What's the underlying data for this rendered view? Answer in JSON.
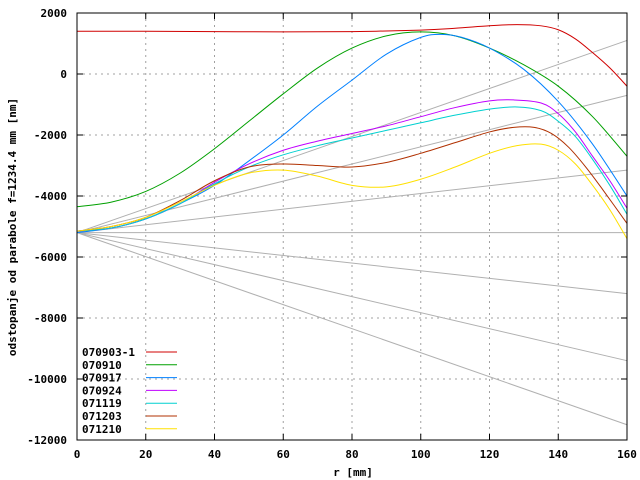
{
  "chart_data": {
    "type": "line",
    "xlabel": "r [mm]",
    "ylabel": "odstopanje od parabole f=1234.4 mm [nm]",
    "xlim": [
      0,
      160
    ],
    "ylim": [
      -12000,
      2000
    ],
    "x_ticks": [
      "0",
      "20",
      "40",
      "60",
      "80",
      "100",
      "120",
      "140",
      "160"
    ],
    "y_ticks": [
      "2000",
      "0",
      "-2000",
      "-4000",
      "-6000",
      "-8000",
      "-10000",
      "-12000"
    ],
    "grid": true,
    "legend_position": "bottom-left",
    "series": [
      {
        "name": "070903-1",
        "color": "#d00000",
        "x": [
          0,
          20,
          40,
          60,
          80,
          100,
          110,
          120,
          128,
          135,
          140,
          145,
          150,
          155,
          160
        ],
        "y": [
          1400,
          1400,
          1390,
          1380,
          1390,
          1440,
          1500,
          1580,
          1620,
          1580,
          1450,
          1150,
          700,
          200,
          -400
        ]
      },
      {
        "name": "070910",
        "color": "#00a000",
        "x": [
          0,
          10,
          20,
          30,
          40,
          50,
          60,
          70,
          80,
          90,
          100,
          110,
          120,
          130,
          140,
          150,
          160
        ],
        "y": [
          -4350,
          -4200,
          -3850,
          -3250,
          -2450,
          -1550,
          -650,
          200,
          850,
          1250,
          1380,
          1250,
          850,
          300,
          -400,
          -1400,
          -2700
        ]
      },
      {
        "name": "070917",
        "color": "#0080ff",
        "x": [
          0,
          10,
          20,
          30,
          40,
          50,
          60,
          70,
          80,
          90,
          100,
          106,
          112,
          120,
          130,
          140,
          150,
          160
        ],
        "y": [
          -5200,
          -5050,
          -4750,
          -4250,
          -3650,
          -2850,
          -2000,
          -1050,
          -200,
          650,
          1200,
          1300,
          1200,
          850,
          150,
          -900,
          -2300,
          -4000
        ]
      },
      {
        "name": "070924",
        "color": "#c000ff",
        "x": [
          0,
          10,
          20,
          30,
          40,
          50,
          60,
          70,
          80,
          90,
          100,
          110,
          120,
          127,
          135,
          140,
          145,
          150,
          155,
          160
        ],
        "y": [
          -5150,
          -5050,
          -4750,
          -4250,
          -3550,
          -2950,
          -2500,
          -2200,
          -1950,
          -1700,
          -1400,
          -1100,
          -880,
          -850,
          -950,
          -1300,
          -1900,
          -2700,
          -3500,
          -4400
        ]
      },
      {
        "name": "071119",
        "color": "#00d0d0",
        "x": [
          0,
          10,
          20,
          30,
          40,
          50,
          60,
          70,
          80,
          90,
          100,
          110,
          120,
          128,
          135,
          140,
          145,
          150,
          155,
          160
        ],
        "y": [
          -5150,
          -5050,
          -4750,
          -4250,
          -3600,
          -3050,
          -2650,
          -2350,
          -2100,
          -1850,
          -1600,
          -1350,
          -1150,
          -1080,
          -1200,
          -1550,
          -2050,
          -2800,
          -3650,
          -4600
        ]
      },
      {
        "name": "071203",
        "color": "#b03000",
        "x": [
          0,
          10,
          20,
          30,
          40,
          50,
          60,
          70,
          80,
          90,
          100,
          110,
          120,
          127,
          133,
          138,
          143,
          148,
          153,
          160
        ],
        "y": [
          -5150,
          -5000,
          -4700,
          -4150,
          -3500,
          -3050,
          -2950,
          -3000,
          -3050,
          -2900,
          -2600,
          -2250,
          -1900,
          -1750,
          -1750,
          -1950,
          -2400,
          -3050,
          -3800,
          -4900
        ]
      },
      {
        "name": "071210",
        "color": "#ffe000",
        "x": [
          0,
          10,
          20,
          30,
          40,
          50,
          60,
          70,
          80,
          90,
          100,
          110,
          120,
          128,
          135,
          140,
          145,
          150,
          155,
          160
        ],
        "y": [
          -5150,
          -5000,
          -4700,
          -4200,
          -3650,
          -3250,
          -3150,
          -3350,
          -3650,
          -3700,
          -3450,
          -3050,
          -2600,
          -2350,
          -2300,
          -2500,
          -2950,
          -3650,
          -4450,
          -5400
        ]
      }
    ],
    "reference_lines": {
      "color": "#b0b0b0",
      "lines": [
        {
          "x": [
            0,
            160
          ],
          "y": [
            -5200,
            -5200
          ]
        },
        {
          "x": [
            0,
            160
          ],
          "y": [
            -5200,
            -700
          ]
        },
        {
          "x": [
            0,
            160
          ],
          "y": [
            -5200,
            1100
          ]
        },
        {
          "x": [
            0,
            160
          ],
          "y": [
            -5200,
            -3150
          ]
        },
        {
          "x": [
            0,
            160
          ],
          "y": [
            -5200,
            -7200
          ]
        },
        {
          "x": [
            0,
            160
          ],
          "y": [
            -5200,
            -9400
          ]
        },
        {
          "x": [
            0,
            160
          ],
          "y": [
            -5200,
            -11500
          ]
        }
      ]
    }
  }
}
